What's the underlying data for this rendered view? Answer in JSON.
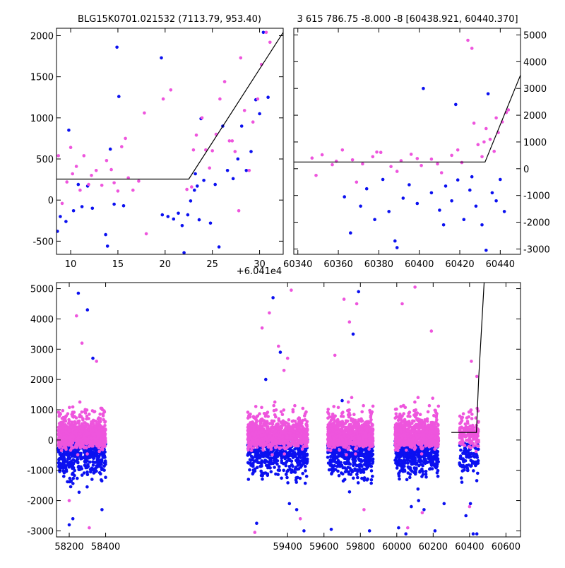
{
  "colors": {
    "blue": "#0b10f0",
    "magenta": "#ee55dd",
    "line": "#000000"
  },
  "chart_data": [
    {
      "type": "scatter",
      "title": "BLG15K0701.021532 (7113.79, 953.40)",
      "x_offset_label": "+6.041e4",
      "xlim": [
        8.5,
        32.5
      ],
      "ylim": [
        -660,
        2090
      ],
      "xticks": [
        10,
        15,
        20,
        25,
        30
      ],
      "yticks": [
        -500,
        0,
        500,
        1000,
        1500,
        2000
      ],
      "yaxis_side": "left",
      "model": {
        "x": [
          8.5,
          22.5,
          32.5
        ],
        "y": [
          255,
          255,
          2040
        ]
      },
      "series": [
        {
          "name": "blue",
          "x": [
            8.6,
            8.9,
            9.5,
            9.8,
            10.3,
            10.8,
            11.2,
            11.8,
            12.3,
            13.7,
            13.9,
            14.2,
            14.6,
            14.9,
            15.1,
            15.6,
            19.6,
            19.7,
            20.3,
            20.9,
            21.4,
            21.8,
            22.0,
            22.4,
            22.7,
            23.1,
            23.2,
            23.4,
            23.6,
            23.8,
            24.1,
            24.8,
            25.3,
            25.7,
            26.1,
            26.6,
            27.2,
            27.7,
            28.1,
            28.6,
            29.1,
            29.6,
            30.0,
            30.4,
            30.9
          ],
          "y": [
            -380,
            -200,
            -260,
            850,
            -130,
            190,
            -80,
            170,
            -100,
            -420,
            -560,
            620,
            -50,
            1860,
            1260,
            -70,
            1730,
            -180,
            -200,
            -230,
            -160,
            -310,
            -640,
            -180,
            -10,
            120,
            320,
            170,
            -240,
            990,
            240,
            -280,
            190,
            -570,
            900,
            360,
            260,
            500,
            900,
            360,
            590,
            1220,
            1050,
            2040,
            1250
          ]
        },
        {
          "name": "magenta",
          "x": [
            8.7,
            9.1,
            9.6,
            10.0,
            10.2,
            10.6,
            11.0,
            11.4,
            11.9,
            12.2,
            12.7,
            13.3,
            13.8,
            14.3,
            14.6,
            15.0,
            15.4,
            15.8,
            16.1,
            16.6,
            17.2,
            17.8,
            18.0,
            19.8,
            20.6,
            22.3,
            22.8,
            23.0,
            23.3,
            23.9,
            24.3,
            24.7,
            25.0,
            25.4,
            25.8,
            26.3,
            26.8,
            27.1,
            27.4,
            27.8,
            28.0,
            28.4,
            28.9,
            29.3,
            29.8,
            30.2,
            30.7,
            31.1
          ],
          "y": [
            540,
            -40,
            220,
            640,
            320,
            410,
            120,
            540,
            190,
            300,
            360,
            180,
            480,
            370,
            210,
            110,
            650,
            750,
            270,
            120,
            230,
            1060,
            -410,
            1230,
            1340,
            130,
            160,
            610,
            790,
            1000,
            610,
            390,
            600,
            800,
            1230,
            1440,
            720,
            720,
            590,
            -130,
            1730,
            1090,
            360,
            950,
            1230,
            1650,
            2040,
            1920
          ]
        }
      ]
    },
    {
      "type": "scatter",
      "title": "3 615 786.75 -8.000 -8 [60438.921, 60440.370]",
      "xlim": [
        60338,
        60450
      ],
      "ylim": [
        -3200,
        5250
      ],
      "xticks": [
        60340,
        60360,
        60380,
        60400,
        60420,
        60440
      ],
      "yticks": [
        -3000,
        -2000,
        -1000,
        0,
        1000,
        2000,
        3000,
        4000,
        5000
      ],
      "yaxis_side": "right",
      "model": {
        "x": [
          60338,
          60432.5,
          60450
        ],
        "y": [
          250,
          250,
          3500
        ]
      },
      "series": [
        {
          "name": "blue",
          "x": [
            60363,
            60366,
            60371,
            60374,
            60378,
            60382,
            60385,
            60389,
            60392,
            60395,
            60399,
            60402,
            60406,
            60410,
            60413,
            60416,
            60419,
            60422,
            60425,
            60428,
            60431,
            60434,
            60436,
            60438,
            60440,
            60442,
            60388,
            60412,
            60418,
            60426,
            60433
          ],
          "y": [
            -1050,
            -2400,
            -1400,
            -750,
            -1900,
            -400,
            -1600,
            -2950,
            -1100,
            -600,
            -1300,
            3000,
            -900,
            -1550,
            -650,
            -1200,
            -420,
            -1900,
            -800,
            -1400,
            -2100,
            2800,
            -900,
            -1200,
            -400,
            -1600,
            -2700,
            -2100,
            2400,
            -300,
            -3050
          ]
        },
        {
          "name": "magenta",
          "x": [
            60347,
            60352,
            60357,
            60362,
            60367,
            60372,
            60377,
            60381,
            60386,
            60391,
            60396,
            60401,
            60406,
            60411,
            60416,
            60421,
            60424,
            60427,
            60429,
            60431,
            60433,
            60435,
            60437,
            60439,
            60441,
            60443,
            60349,
            60359,
            60369,
            60379,
            60389,
            60399,
            60409,
            60419,
            60426,
            60432,
            60438,
            60444
          ],
          "y": [
            400,
            520,
            150,
            700,
            330,
            180,
            450,
            610,
            80,
            300,
            540,
            120,
            360,
            -150,
            500,
            230,
            4800,
            1700,
            900,
            450,
            1500,
            1100,
            650,
            1350,
            1750,
            2100,
            -250,
            280,
            -500,
            620,
            -100,
            380,
            180,
            700,
            4500,
            1000,
            1900,
            2200
          ]
        }
      ]
    },
    {
      "type": "scatter",
      "title": "",
      "xlim": [
        58130,
        60680
      ],
      "ylim": [
        -3200,
        5200
      ],
      "xticks": [
        58200,
        58400,
        59400,
        59600,
        59800,
        60000,
        60200,
        60400,
        60600
      ],
      "yticks": [
        -3000,
        -2000,
        -1000,
        0,
        1000,
        2000,
        3000,
        4000,
        5000
      ],
      "yaxis_side": "left",
      "model": {
        "x": [
          60300,
          60438,
          60450,
          60480
        ],
        "y": [
          250,
          250,
          2000,
          5200
        ]
      },
      "seasons": [
        {
          "xmin": 58140,
          "xmax": 58400,
          "tag": "s1"
        },
        {
          "xmin": 59180,
          "xmax": 59510,
          "tag": "s2"
        },
        {
          "xmin": 59620,
          "xmax": 59870,
          "tag": "s3"
        },
        {
          "xmin": 59990,
          "xmax": 60230,
          "tag": "s4"
        },
        {
          "xmin": 60345,
          "xmax": 60450,
          "tag": "s5"
        }
      ],
      "outliers": {
        "blue": {
          "x": [
            58250,
            58300,
            58330,
            58200,
            58380,
            59230,
            59280,
            59320,
            59410,
            59450,
            59490,
            59700,
            59760,
            59790,
            59850,
            60010,
            60080,
            60150,
            60210,
            60380,
            60420,
            60440,
            60260,
            60405,
            58170,
            58220,
            59360,
            59640,
            60050,
            60120
          ],
          "y": [
            4850,
            4300,
            2700,
            -2800,
            -2300,
            -2750,
            2000,
            4700,
            -2100,
            -2300,
            -3000,
            1300,
            3500,
            4900,
            -3000,
            -2900,
            -2200,
            -2300,
            -3000,
            -2500,
            -3100,
            -3100,
            -2100,
            -2100,
            -1200,
            -2600,
            2900,
            -2950,
            -3100,
            -2000
          ]
        },
        "magenta": {
          "x": [
            58240,
            58270,
            58310,
            58350,
            59220,
            59260,
            59300,
            59350,
            59380,
            59420,
            59470,
            59710,
            59740,
            59780,
            59820,
            60030,
            60100,
            60140,
            60190,
            60410,
            60440,
            60400,
            58200,
            59400,
            59660,
            60060
          ],
          "y": [
            4100,
            3200,
            -2900,
            2600,
            -3050,
            3700,
            4200,
            3100,
            2300,
            4950,
            -2600,
            4650,
            3900,
            4500,
            -2300,
            4500,
            5050,
            -2400,
            3600,
            2600,
            2100,
            -2200,
            -2000,
            2700,
            2800,
            -2900
          ]
        }
      }
    }
  ]
}
